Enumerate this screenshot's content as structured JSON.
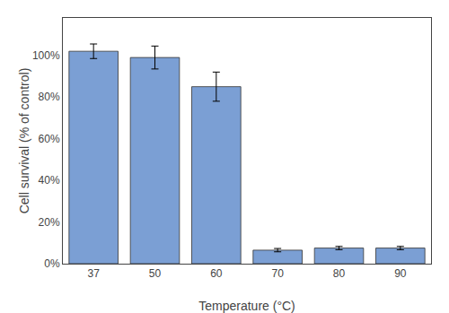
{
  "chart_data": {
    "type": "bar",
    "xlabel": "Temperature (°C)",
    "ylabel": "Cell survival (% of control)",
    "categories": [
      "37",
      "50",
      "60",
      "70",
      "80",
      "90"
    ],
    "values": [
      1.02,
      0.99,
      0.85,
      0.065,
      0.075,
      0.075
    ],
    "errors": [
      0.035,
      0.055,
      0.07,
      0.008,
      0.008,
      0.008
    ],
    "color": "#7B9FD4",
    "ylim": [
      0,
      1.18
    ],
    "yticks": [
      {
        "value": 0,
        "label": "0%"
      },
      {
        "value": 0.2,
        "label": "20%"
      },
      {
        "value": 0.4,
        "label": "40%"
      },
      {
        "value": 0.6,
        "label": "60%"
      },
      {
        "value": 0.8,
        "label": "80%"
      },
      {
        "value": 1.0,
        "label": "100%"
      }
    ],
    "grid": false
  }
}
